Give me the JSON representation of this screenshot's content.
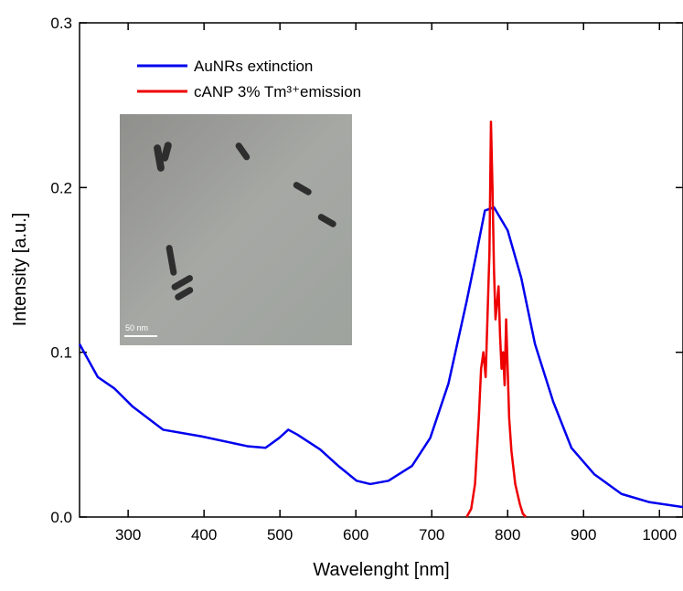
{
  "chart_data": {
    "type": "line",
    "xlabel": "Wavelenght [nm]",
    "ylabel": "Intensity [a.u.]",
    "xlim": [
      236,
      1031
    ],
    "ylim": [
      0,
      0.3
    ],
    "xticks": [
      300,
      400,
      500,
      600,
      700,
      800,
      900,
      1000
    ],
    "yticks": [
      {
        "value": 0,
        "label": "0.0"
      },
      0.1,
      0.2,
      0.3
    ],
    "legend": "upper left",
    "series": [
      {
        "name": "AuNRs extinction",
        "color": "#0000ee",
        "x": [
          236,
          260,
          282,
          306,
          346,
          396,
          457,
          481,
          499,
          511,
          523,
          553,
          577,
          601,
          619,
          643,
          674,
          698,
          722,
          746,
          758,
          770,
          782,
          800,
          818,
          836,
          860,
          884,
          914,
          950,
          987,
          1031
        ],
        "values": [
          0.105,
          0.085,
          0.078,
          0.067,
          0.053,
          0.049,
          0.043,
          0.042,
          0.048,
          0.053,
          0.05,
          0.041,
          0.031,
          0.022,
          0.02,
          0.022,
          0.031,
          0.048,
          0.081,
          0.131,
          0.158,
          0.186,
          0.188,
          0.174,
          0.145,
          0.105,
          0.07,
          0.042,
          0.026,
          0.014,
          0.009,
          0.006
        ]
      },
      {
        "name": "cANP 3% Tm³⁺emission",
        "color": "#ee0000",
        "x": [
          746,
          752,
          757,
          762,
          765,
          768,
          771,
          774,
          776,
          778,
          780,
          782,
          784,
          786,
          788,
          790,
          792,
          794,
          796,
          798,
          800,
          802,
          805,
          810,
          816,
          820,
          824
        ],
        "values": [
          0,
          0.005,
          0.02,
          0.06,
          0.09,
          0.1,
          0.085,
          0.13,
          0.16,
          0.24,
          0.2,
          0.15,
          0.12,
          0.13,
          0.14,
          0.11,
          0.09,
          0.1,
          0.08,
          0.12,
          0.09,
          0.06,
          0.04,
          0.02,
          0.008,
          0.002,
          0
        ]
      }
    ]
  },
  "inset": {
    "scale_label": "50 nm"
  }
}
